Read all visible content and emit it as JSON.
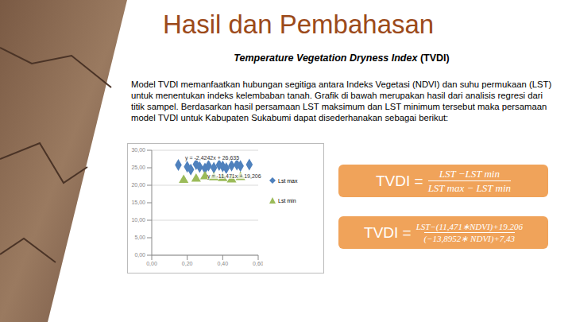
{
  "slide": {
    "title": "Hasil dan Pembahasan",
    "subtitle_italic": "Temperature Vegetation Dryness Index",
    "subtitle_rest": " (TVDI)",
    "paragraph": "Model TVDI memanfaatkan hubungan segitiga antara Indeks Vegetasi (NDVI) dan suhu permukaan (LST) untuk menentukan indeks kelembaban tanah. Grafik di bawah merupakan hasil dari analisis regresi dari titik sampel. Berdasarkan hasil persamaan LST maksimum dan LST minimum tersebut maka persamaan model TVDI untuk Kabupaten Sukabumi dapat disederhanakan sebagai berikut:",
    "formulas": [
      {
        "lhs": "TVDI =",
        "numerator": "LST −LST min",
        "denominator": "LST max − LST min"
      },
      {
        "lhs": "TVDI =",
        "numerator": "LST−(11,471∗NDVI)+19.206",
        "denominator": "(−13,8952∗ NDVI)+7,43"
      }
    ]
  },
  "chart_data": {
    "type": "scatter",
    "xlim": [
      0,
      0.6
    ],
    "xticks": [
      {
        "value": 0,
        "label": "0,00"
      },
      {
        "value": 0.2,
        "label": "0,20"
      },
      {
        "value": 0.4,
        "label": "0,40"
      },
      {
        "value": 0.6,
        "label": "0,60"
      }
    ],
    "ylim": [
      0,
      30
    ],
    "yticks": [
      {
        "value": 0,
        "label": "0,00"
      },
      {
        "value": 5,
        "label": "5,00"
      },
      {
        "value": 10,
        "label": "10,00"
      },
      {
        "value": 15,
        "label": "15,00"
      },
      {
        "value": 20,
        "label": "20,00"
      },
      {
        "value": 25,
        "label": "25,00"
      },
      {
        "value": 30,
        "label": "30,00"
      }
    ],
    "grid": true,
    "legend": "right",
    "annotations": [
      "y = -2,4242x + 26,635",
      "y = -11,471x + 19,206"
    ],
    "series": [
      {
        "name": "Lst max",
        "color": "#4f81bd",
        "marker": "diamond",
        "x": [
          0.15,
          0.2,
          0.22,
          0.25,
          0.27,
          0.3,
          0.32,
          0.35,
          0.38,
          0.4,
          0.42,
          0.45,
          0.48,
          0.5,
          0.55
        ],
        "values": [
          25.8,
          25.3,
          24.5,
          26,
          25.2,
          24.8,
          25.6,
          25,
          25.8,
          25.4,
          24.9,
          25.6,
          25.9,
          25.5,
          25.9
        ]
      },
      {
        "name": "Lst min",
        "color": "#9bbb59",
        "marker": "triangle",
        "x": [
          0.18,
          0.25,
          0.3,
          0.35,
          0.4,
          0.45,
          0.5
        ],
        "values": [
          21.5,
          21.8,
          22.5,
          22.2,
          22,
          21.6,
          22.3
        ]
      }
    ]
  }
}
